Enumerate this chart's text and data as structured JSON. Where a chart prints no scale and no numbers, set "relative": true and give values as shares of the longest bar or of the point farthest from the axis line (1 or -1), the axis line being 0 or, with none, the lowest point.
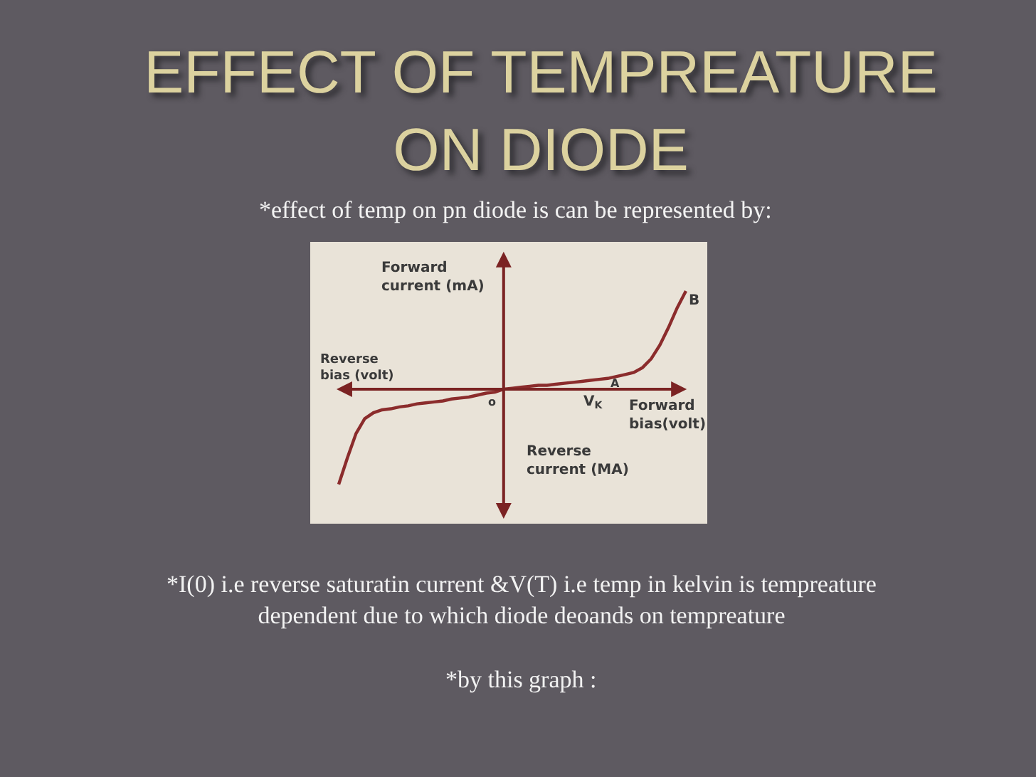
{
  "chart_data": {
    "type": "line",
    "title": "EFFECT OF TEMPREATURE\nON DIODE",
    "subtitle": "*effect of temp on pn diode is can be represented by:",
    "xlabel": "Forward\nbias(volt)",
    "ylabel": "Forward\ncurrent (mA)",
    "annotations": [
      "Reverse\nbias (volt)",
      "o",
      "V$_{K}$",
      "A",
      "B",
      "Reverse\ncurrent (MA)",
      "*I(0) i.e reverse saturatin current &V(T) i.e temp in kelvin is tempreature\ndependent due to which diode deoands on tempreature",
      "*by this graph :"
    ],
    "relative": true,
    "ref_lines": [
      {
        "axis": "y",
        "value": 0,
        "color": "#7b2323"
      }
    ],
    "categories": [
      null,
      null,
      null,
      null,
      null,
      null,
      null,
      null,
      null,
      null,
      null,
      null,
      null,
      null,
      null,
      null,
      null,
      null,
      null,
      null,
      null,
      null,
      null,
      null,
      null,
      null,
      null,
      null,
      null,
      null,
      null,
      null,
      null,
      null,
      null,
      null,
      null,
      null,
      null,
      null,
      null
    ],
    "values": [
      -0.97,
      -0.7,
      -0.45,
      -0.3,
      -0.24,
      -0.21,
      -0.2,
      -0.18,
      -0.17,
      -0.15,
      -0.14,
      -0.13,
      -0.12,
      -0.1,
      -0.09,
      -0.08,
      -0.06,
      -0.04,
      -0.03,
      0.0,
      0.01,
      0.02,
      0.03,
      0.04,
      0.04,
      0.05,
      0.06,
      0.07,
      0.08,
      0.09,
      0.1,
      0.11,
      0.13,
      0.15,
      0.17,
      0.22,
      0.31,
      0.45,
      0.63,
      0.83,
      1.0
    ],
    "color": "#8b2c2c"
  }
}
